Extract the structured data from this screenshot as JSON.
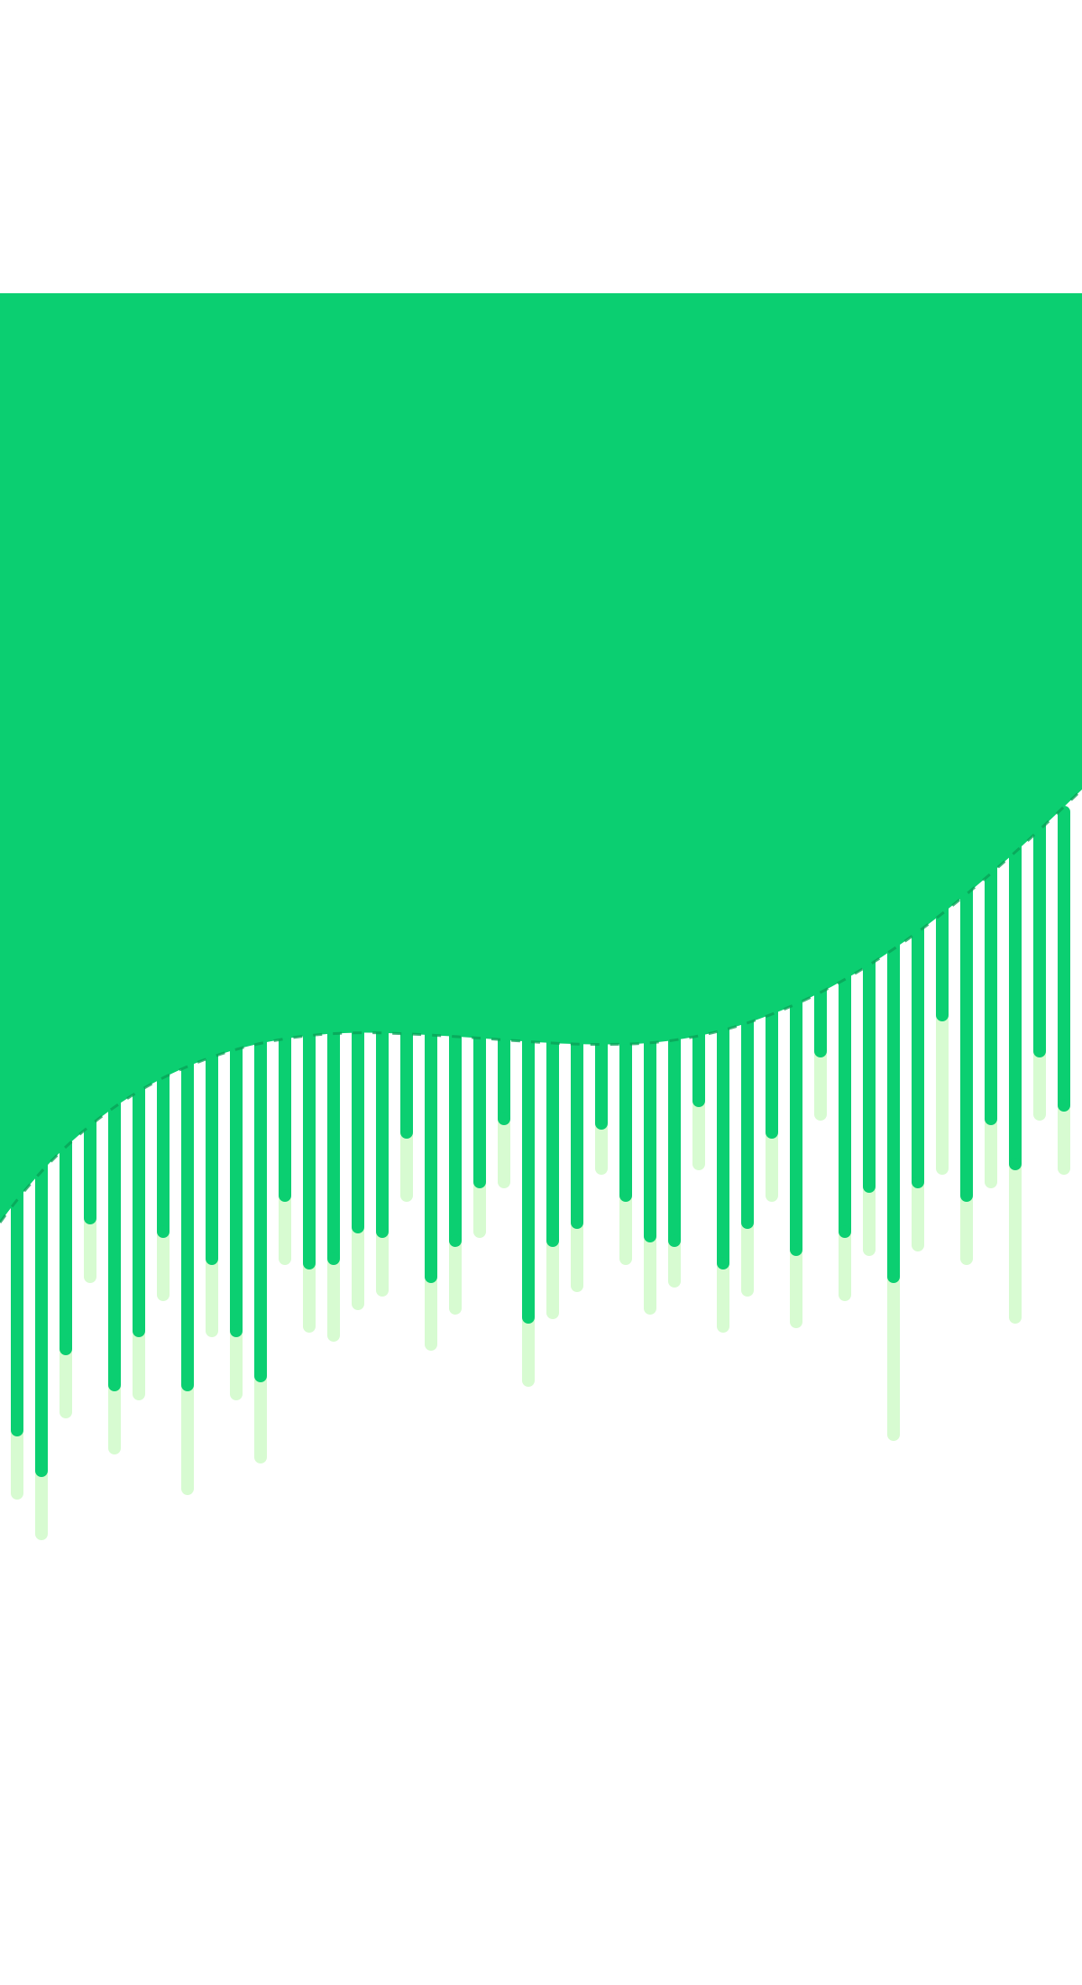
{
  "artwork": {
    "description_icon": "dripping-wave-icon",
    "colors": {
      "background": "#ffffff",
      "primary_green": "#0bcf71",
      "light_green": "#d7fbd1",
      "wave_edge": "#0a9f55"
    }
  }
}
